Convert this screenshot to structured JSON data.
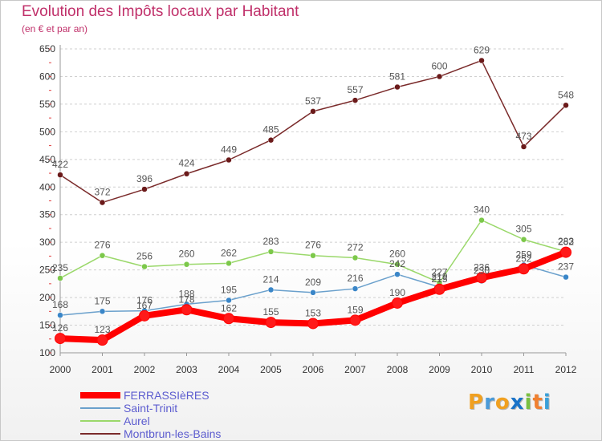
{
  "header": {
    "title": "Evolution des Impôts locaux par Habitant",
    "subtitle": "(en € et par an)"
  },
  "logo": {
    "letters": [
      "P",
      "r",
      "o",
      "x",
      "i",
      "t",
      "i"
    ],
    "colors": [
      "#f0a020",
      "#4a9ad8",
      "#f0a020",
      "#1a73c8",
      "#7ac040",
      "#f08030",
      "#3aa0d8"
    ]
  },
  "chart_data": {
    "type": "line",
    "x": [
      2000,
      2001,
      2002,
      2003,
      2004,
      2005,
      2006,
      2007,
      2008,
      2009,
      2010,
      2011,
      2012
    ],
    "xlabels": [
      "2000",
      "2001",
      "2002",
      "2003",
      "2004",
      "2005",
      "2006",
      "2007",
      "2008",
      "2009",
      "2010",
      "2011",
      "2012"
    ],
    "ylim": [
      100,
      650
    ],
    "yticks": [
      100,
      150,
      200,
      250,
      300,
      350,
      400,
      450,
      500,
      550,
      600,
      650
    ],
    "ytick_labels": [
      "100",
      "150",
      "200",
      "250",
      "300",
      "350",
      "400",
      "450",
      "500",
      "550",
      "600",
      "650"
    ],
    "grid": "horizontal dashed",
    "legend_position": "bottom-left",
    "series": [
      {
        "name": "Montbrun-les-Bains",
        "color": "#7a2a2a",
        "marker": "#6b1a1a",
        "values": [
          422,
          372,
          396,
          424,
          449,
          485,
          537,
          557,
          581,
          600,
          629,
          473,
          548
        ],
        "labels": [
          "422",
          "372",
          "396",
          "424",
          "449",
          "485",
          "537",
          "557",
          "581",
          "600",
          "629",
          "473",
          "548"
        ]
      },
      {
        "name": "Aurel",
        "color": "#9ad86a",
        "marker": "#7cc84a",
        "values": [
          235,
          276,
          256,
          260,
          262,
          283,
          276,
          272,
          260,
          227,
          340,
          305,
          283
        ],
        "labels": [
          "235",
          "276",
          "256",
          "260",
          "262",
          "283",
          "276",
          "272",
          "260",
          "227",
          "340",
          "305",
          "283"
        ]
      },
      {
        "name": "Saint-Trinit",
        "color": "#6aa0cc",
        "marker": "#3a86c8",
        "values": [
          168,
          175,
          176,
          188,
          195,
          214,
          209,
          216,
          242,
          219,
          230,
          259,
          237
        ],
        "labels": [
          "168",
          "175",
          "176",
          "188",
          "195",
          "214",
          "209",
          "216",
          "242",
          "219",
          "230",
          "259",
          "237"
        ]
      },
      {
        "name": "FERRASSIèRES",
        "color": "#ff0000",
        "marker": "#ff1a1a",
        "values": [
          126,
          123,
          167,
          178,
          162,
          155,
          153,
          159,
          190,
          215,
          236,
          252,
          282
        ],
        "labels": [
          "126",
          "123",
          "167",
          "178",
          "162",
          "155",
          "153",
          "159",
          "190",
          "215",
          "236",
          "252",
          "282"
        ]
      }
    ],
    "legend_order": [
      "FERRASSIèRES",
      "Saint-Trinit",
      "Aurel",
      "Montbrun-les-Bains"
    ]
  }
}
